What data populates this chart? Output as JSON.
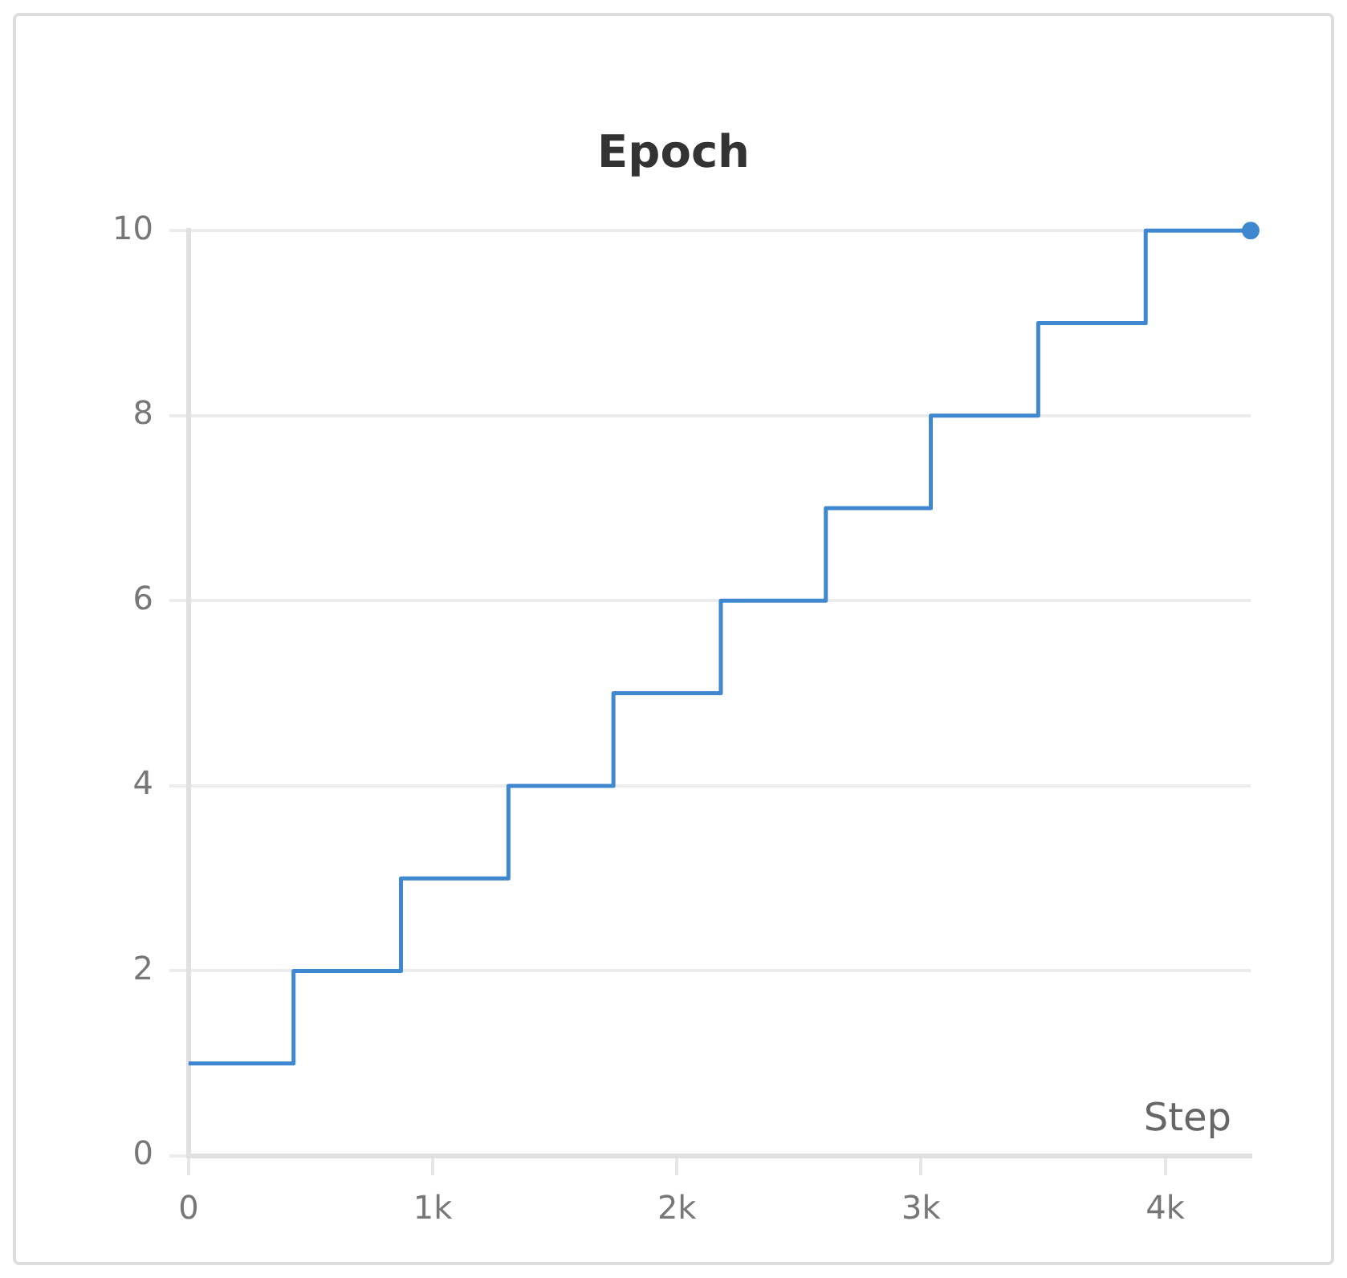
{
  "chart_data": {
    "type": "step",
    "title": "Epoch",
    "xlabel": "Step",
    "xlim": [
      0,
      4350
    ],
    "ylim": [
      0,
      10
    ],
    "xticks": [
      0,
      {
        "value": 1000,
        "label": "1k"
      },
      {
        "value": 2000,
        "label": "2k"
      },
      {
        "value": 3000,
        "label": "3k"
      },
      {
        "value": 4000,
        "label": "4k"
      }
    ],
    "yticks": [
      0,
      2,
      4,
      6,
      8,
      10
    ],
    "grid": "y",
    "legend": false,
    "series": [
      {
        "color": "#3f88cf",
        "x": [
          0,
          430,
          870,
          1310,
          1740,
          2180,
          2610,
          3040,
          3480,
          3920,
          4350
        ],
        "values": [
          1,
          2,
          3,
          4,
          5,
          6,
          7,
          8,
          9,
          10,
          10
        ]
      },
      {
        "type": "scatter",
        "color": "#3f88cf",
        "marker": "circle",
        "x": [
          4350
        ],
        "values": [
          10
        ]
      }
    ]
  }
}
